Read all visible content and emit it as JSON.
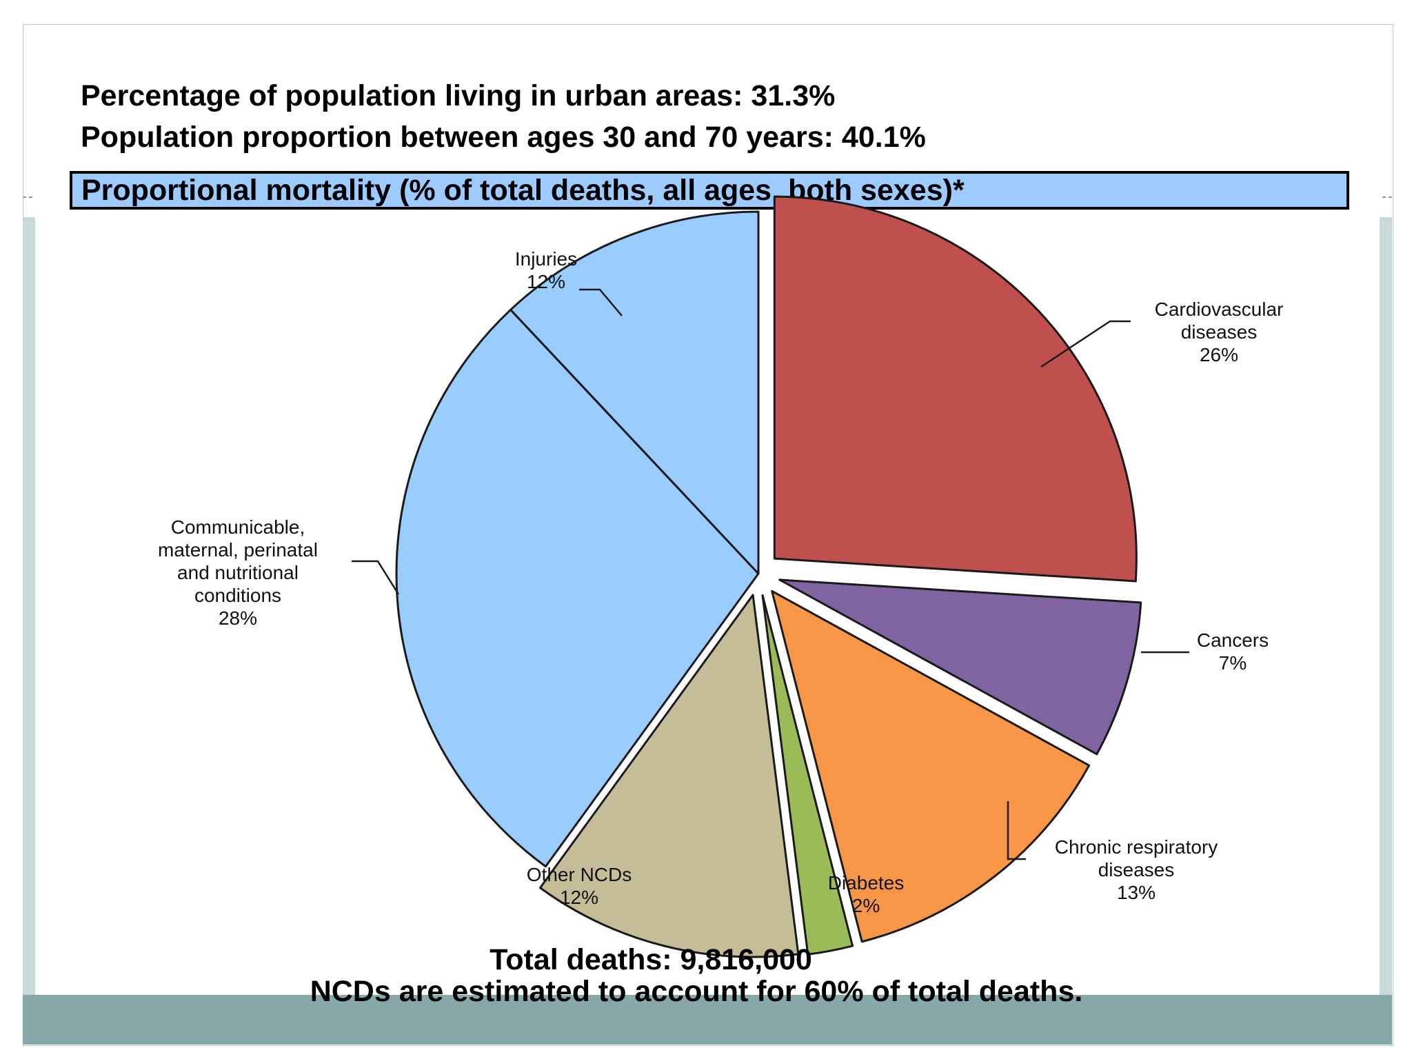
{
  "stats": {
    "urban": "Percentage of population living in urban areas: 31.3%",
    "age": "Population proportion between ages 30 and 70 years:  40.1%"
  },
  "banner": "Proportional mortality (% of total deaths, all ages, both sexes)*",
  "footer": {
    "total_deaths": "Total deaths: 9,816,000",
    "ncd_note": "NCDs are estimated to account for 60% of total deaths."
  },
  "chart_data": {
    "type": "pie",
    "unit": "%",
    "start": "12 o'clock, clockwise",
    "slices": [
      {
        "name": "Cardiovascular diseases",
        "label_lines": [
          "Cardiovascular",
          "diseases",
          "26%"
        ],
        "value": 26,
        "color": "#c0504d",
        "exploded": true
      },
      {
        "name": "Cancers",
        "label_lines": [
          "Cancers",
          "7%"
        ],
        "value": 7,
        "color": "#8064a2",
        "exploded": true
      },
      {
        "name": "Chronic respiratory diseases",
        "label_lines": [
          "Chronic respiratory",
          "diseases",
          "13%"
        ],
        "value": 13,
        "color": "#f79646",
        "exploded": true
      },
      {
        "name": "Diabetes",
        "label_lines": [
          "Diabetes",
          "2%"
        ],
        "value": 2,
        "color": "#9bbb59",
        "exploded": true
      },
      {
        "name": "Other NCDs",
        "label_lines": [
          "Other NCDs",
          "12%"
        ],
        "value": 12,
        "color": "#c4bd97",
        "exploded": true
      },
      {
        "name": "Communicable, maternal, perinatal and nutritional conditions",
        "label_lines": [
          "Communicable,",
          "maternal, perinatal",
          "and nutritional",
          "conditions",
          "28%"
        ],
        "value": 28,
        "color": "#99ccff",
        "exploded": false
      },
      {
        "name": "Injuries",
        "label_lines": [
          "Injuries",
          "12%"
        ],
        "value": 12,
        "color": "#99ccff",
        "exploded": false
      }
    ]
  }
}
